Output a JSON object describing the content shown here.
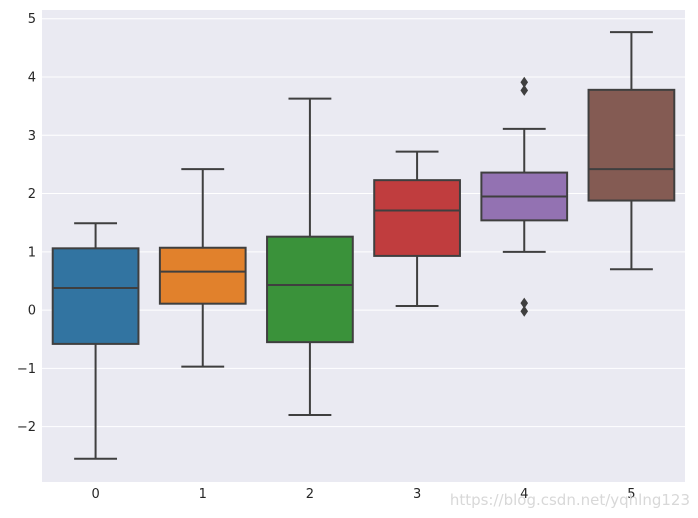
{
  "chart_data": {
    "type": "boxplot",
    "title": "",
    "xlabel": "",
    "ylabel": "",
    "ylim": [
      -2.95,
      5.15
    ],
    "y_ticks": [
      -2,
      -1,
      0,
      1,
      2,
      3,
      4,
      5
    ],
    "y_tick_labels": [
      "−2",
      "−1",
      "0",
      "1",
      "2",
      "3",
      "4",
      "5"
    ],
    "grid": true,
    "categories": [
      "0",
      "1",
      "2",
      "3",
      "4",
      "5"
    ],
    "boxes": [
      {
        "category": "0",
        "whisker_low": -2.55,
        "q1": -0.58,
        "median": 0.38,
        "q3": 1.06,
        "whisker_high": 1.49,
        "color": "#3274a1",
        "outliers": []
      },
      {
        "category": "1",
        "whisker_low": -0.97,
        "q1": 0.11,
        "median": 0.66,
        "q3": 1.07,
        "whisker_high": 2.42,
        "color": "#e1812c",
        "outliers": []
      },
      {
        "category": "2",
        "whisker_low": -1.8,
        "q1": -0.55,
        "median": 0.43,
        "q3": 1.26,
        "whisker_high": 3.63,
        "color": "#3a923a",
        "outliers": []
      },
      {
        "category": "3",
        "whisker_low": 0.07,
        "q1": 0.93,
        "median": 1.71,
        "q3": 2.23,
        "whisker_high": 2.72,
        "color": "#c03d3e",
        "outliers": []
      },
      {
        "category": "4",
        "whisker_low": 1.0,
        "q1": 1.54,
        "median": 1.95,
        "q3": 2.36,
        "whisker_high": 3.11,
        "color": "#9372b2",
        "outliers": [
          3.91,
          3.77,
          0.12,
          -0.02
        ]
      },
      {
        "category": "5",
        "whisker_low": 0.7,
        "q1": 1.88,
        "median": 2.42,
        "q3": 3.78,
        "whisker_high": 4.77,
        "color": "#845b53",
        "outliers": []
      }
    ],
    "line_color": "#3f3f3f",
    "plot_background": "#eaeaf2",
    "grid_color": "#ffffff"
  },
  "watermark": "https://blog.csdn.net/yqhlng123"
}
